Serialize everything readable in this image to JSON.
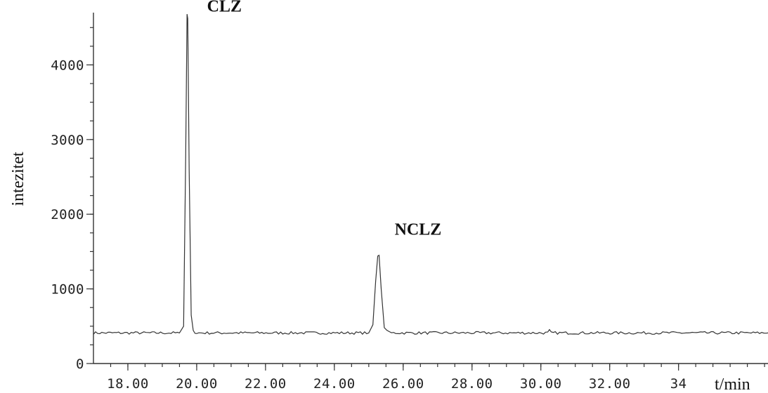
{
  "chart_data": {
    "type": "line",
    "title": "",
    "xlabel": "t/min",
    "ylabel": "intezitet",
    "xlim": [
      17.0,
      36.6
    ],
    "ylim": [
      0,
      4700
    ],
    "x_ticks": [
      18,
      20,
      22,
      24,
      26,
      28,
      30,
      32,
      34
    ],
    "x_tick_labels": [
      "18.00",
      "20.00",
      "22.00",
      "24.00",
      "26.00",
      "28.00",
      "30.00",
      "32.00",
      "34"
    ],
    "y_ticks": [
      0,
      1000,
      2000,
      3000,
      4000
    ],
    "y_tick_labels": [
      "0",
      "1000",
      "2000",
      "3000",
      "4000"
    ],
    "grid": false,
    "baseline": 410,
    "series": [
      {
        "x": [
          17.0,
          19.5,
          19.62,
          19.68,
          19.72,
          19.74,
          19.78,
          19.84,
          19.9,
          20.0,
          25.0,
          25.12,
          25.2,
          25.26,
          25.3,
          25.36,
          25.45,
          25.6,
          30.2,
          30.25,
          30.3,
          36.6
        ],
        "y": [
          410,
          410,
          500,
          2800,
          4680,
          4620,
          2600,
          650,
          430,
          410,
          410,
          520,
          1100,
          1440,
          1450,
          1000,
          480,
          410,
          410,
          440,
          410,
          410
        ]
      }
    ],
    "annotations": [
      {
        "text": "CLZ",
        "x": 20.3,
        "y": 4620
      },
      {
        "text": "NCLZ",
        "x": 25.75,
        "y": 1630
      }
    ]
  }
}
